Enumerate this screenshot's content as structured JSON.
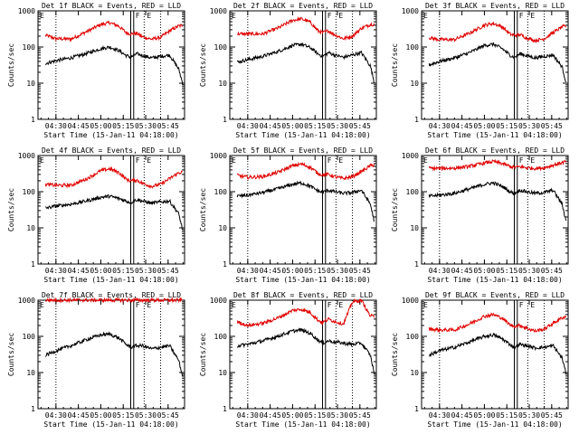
{
  "figure": {
    "colors": {
      "events": "#000000",
      "lld": "#e00000",
      "axes": "#000000",
      "background": "#ffffff"
    },
    "x_tick_labels": [
      "04:30",
      "04:45",
      "05:00",
      "05:15",
      "05:30",
      "05:45"
    ],
    "y_tick_labels": [
      "1",
      "10",
      "100",
      "1000"
    ],
    "ylabel": "Counts/sec",
    "xlabel": "Start Time (15-Jan-11 04:18:00)",
    "marker_F": "F",
    "marker_E": "E",
    "panel_titles": [
      "Det 1f BLACK = Events, RED = LLD",
      "Det 2f BLACK = Events, RED = LLD",
      "Det 3f BLACK = Events, RED = LLD",
      "Det 4f BLACK = Events, RED = LLD",
      "Det 5f BLACK = Events, RED = LLD",
      "Det 6f BLACK = Events, RED = LLD",
      "Det 7f BLACK = Events, RED = LLD",
      "Det 8f BLACK = Events, RED = LLD",
      "Det 9f BLACK = Events, RED = LLD"
    ]
  },
  "chart_data": [
    {
      "type": "line",
      "title": "Det 1f BLACK = Events, RED = LLD",
      "xlabel": "Start Time (15-Jan-11 04:18:00)",
      "ylabel": "Counts/sec",
      "yscale": "log",
      "ylim": [
        1,
        1000
      ],
      "xlim": [
        "04:18",
        "05:56"
      ],
      "vertical_lines": {
        "dotted": [
          "04:30",
          "05:29",
          "05:40"
        ],
        "solid": [
          "05:20",
          "05:22"
        ]
      },
      "x": [
        "04:23",
        "04:30",
        "04:40",
        "04:50",
        "05:00",
        "05:06",
        "05:12",
        "05:17",
        "05:20",
        "05:24",
        "05:28",
        "05:34",
        "05:40",
        "05:46",
        "05:52",
        "05:55"
      ],
      "series": [
        {
          "name": "LLD",
          "color": "#e00000",
          "values": [
            210,
            170,
            165,
            260,
            420,
            470,
            380,
            250,
            230,
            240,
            190,
            165,
            185,
            280,
            380,
            400
          ]
        },
        {
          "name": "Events",
          "color": "#000000",
          "values": [
            35,
            42,
            50,
            65,
            90,
            100,
            80,
            58,
            52,
            65,
            58,
            50,
            55,
            60,
            25,
            9
          ]
        }
      ]
    },
    {
      "type": "line",
      "title": "Det 2f BLACK = Events, RED = LLD",
      "xlabel": "Start Time (15-Jan-11 04:18:00)",
      "ylabel": "Counts/sec",
      "yscale": "log",
      "ylim": [
        1,
        1000
      ],
      "xlim": [
        "04:18",
        "05:56"
      ],
      "vertical_lines": {
        "dotted": [
          "04:30",
          "05:29",
          "05:40"
        ],
        "solid": [
          "05:20",
          "05:22"
        ]
      },
      "x": [
        "04:23",
        "04:30",
        "04:40",
        "04:50",
        "05:00",
        "05:06",
        "05:12",
        "05:17",
        "05:20",
        "05:24",
        "05:28",
        "05:34",
        "05:40",
        "05:46",
        "05:52",
        "05:55"
      ],
      "series": [
        {
          "name": "LLD",
          "color": "#e00000",
          "values": [
            230,
            230,
            230,
            330,
            550,
            600,
            480,
            280,
            250,
            280,
            220,
            170,
            200,
            330,
            420,
            430
          ]
        },
        {
          "name": "Events",
          "color": "#000000",
          "values": [
            38,
            45,
            55,
            75,
            110,
            120,
            95,
            65,
            55,
            70,
            60,
            52,
            60,
            70,
            30,
            9
          ]
        }
      ]
    },
    {
      "type": "line",
      "title": "Det 3f BLACK = Events, RED = LLD",
      "xlabel": "Start Time (15-Jan-11 04:18:00)",
      "ylabel": "Counts/sec",
      "yscale": "log",
      "ylim": [
        1,
        1000
      ],
      "xlim": [
        "04:18",
        "05:56"
      ],
      "vertical_lines": {
        "dotted": [
          "04:30",
          "05:29",
          "05:40"
        ],
        "solid": [
          "05:20",
          "05:22"
        ]
      },
      "x": [
        "04:23",
        "04:30",
        "04:40",
        "04:50",
        "05:00",
        "05:06",
        "05:12",
        "05:17",
        "05:20",
        "05:24",
        "05:28",
        "05:34",
        "05:40",
        "05:46",
        "05:52",
        "05:55"
      ],
      "series": [
        {
          "name": "LLD",
          "color": "#e00000",
          "values": [
            180,
            160,
            160,
            240,
            400,
            450,
            360,
            230,
            210,
            220,
            180,
            150,
            170,
            250,
            360,
            380
          ]
        },
        {
          "name": "Events",
          "color": "#000000",
          "values": [
            32,
            40,
            50,
            70,
            110,
            120,
            90,
            60,
            52,
            65,
            58,
            50,
            55,
            60,
            28,
            9
          ]
        }
      ]
    },
    {
      "type": "line",
      "title": "Det 4f BLACK = Events, RED = LLD",
      "xlabel": "Start Time (15-Jan-11 04:18:00)",
      "ylabel": "Counts/sec",
      "yscale": "log",
      "ylim": [
        1,
        1000
      ],
      "xlim": [
        "04:18",
        "05:56"
      ],
      "vertical_lines": {
        "dotted": [
          "04:30",
          "05:29",
          "05:40"
        ],
        "solid": [
          "05:20",
          "05:22"
        ]
      },
      "x": [
        "04:23",
        "04:30",
        "04:40",
        "04:50",
        "05:00",
        "05:06",
        "05:12",
        "05:17",
        "05:20",
        "05:24",
        "05:28",
        "05:34",
        "05:40",
        "05:46",
        "05:52",
        "05:55"
      ],
      "series": [
        {
          "name": "LLD",
          "color": "#e00000",
          "values": [
            160,
            150,
            150,
            220,
            380,
            430,
            340,
            220,
            200,
            210,
            170,
            140,
            160,
            230,
            330,
            350
          ]
        },
        {
          "name": "Events",
          "color": "#000000",
          "values": [
            35,
            40,
            45,
            55,
            70,
            75,
            65,
            55,
            50,
            60,
            55,
            48,
            52,
            55,
            25,
            8
          ]
        }
      ]
    },
    {
      "type": "line",
      "title": "Det 5f BLACK = Events, RED = LLD",
      "xlabel": "Start Time (15-Jan-11 04:18:00)",
      "ylabel": "Counts/sec",
      "yscale": "log",
      "ylim": [
        1,
        1000
      ],
      "xlim": [
        "04:18",
        "05:56"
      ],
      "vertical_lines": {
        "dotted": [
          "04:30",
          "05:29",
          "05:40"
        ],
        "solid": [
          "05:20",
          "05:22"
        ]
      },
      "x": [
        "04:23",
        "04:30",
        "04:40",
        "04:50",
        "05:00",
        "05:06",
        "05:12",
        "05:17",
        "05:20",
        "05:24",
        "05:28",
        "05:34",
        "05:40",
        "05:46",
        "05:52",
        "05:55"
      ],
      "series": [
        {
          "name": "LLD",
          "color": "#e00000",
          "values": [
            280,
            250,
            260,
            340,
            520,
            580,
            470,
            320,
            290,
            300,
            260,
            230,
            260,
            360,
            520,
            560
          ]
        },
        {
          "name": "Events",
          "color": "#000000",
          "values": [
            75,
            80,
            95,
            120,
            160,
            175,
            140,
            105,
            95,
            110,
            100,
            90,
            95,
            110,
            45,
            13
          ]
        }
      ]
    },
    {
      "type": "line",
      "title": "Det 6f BLACK = Events, RED = LLD",
      "xlabel": "Start Time (15-Jan-11 04:18:00)",
      "ylabel": "Counts/sec",
      "yscale": "log",
      "ylim": [
        1,
        1000
      ],
      "xlim": [
        "04:18",
        "05:56"
      ],
      "vertical_lines": {
        "dotted": [
          "04:30",
          "05:29",
          "05:40"
        ],
        "solid": [
          "05:20",
          "05:22"
        ]
      },
      "x": [
        "04:23",
        "04:30",
        "04:40",
        "04:50",
        "05:00",
        "05:06",
        "05:12",
        "05:17",
        "05:20",
        "05:24",
        "05:28",
        "05:34",
        "05:40",
        "05:46",
        "05:52",
        "05:55"
      ],
      "series": [
        {
          "name": "LLD",
          "color": "#e00000",
          "values": [
            450,
            440,
            450,
            500,
            620,
            680,
            600,
            500,
            470,
            490,
            460,
            440,
            460,
            540,
            640,
            680
          ]
        },
        {
          "name": "Events",
          "color": "#000000",
          "values": [
            75,
            80,
            90,
            120,
            160,
            175,
            140,
            100,
            90,
            110,
            100,
            90,
            95,
            110,
            45,
            13
          ]
        }
      ]
    },
    {
      "type": "line",
      "title": "Det 7f BLACK = Events, RED = LLD",
      "xlabel": "Start Time (15-Jan-11 04:18:00)",
      "ylabel": "Counts/sec",
      "yscale": "log",
      "ylim": [
        1,
        1000
      ],
      "xlim": [
        "04:18",
        "05:56"
      ],
      "vertical_lines": {
        "dotted": [
          "04:30",
          "05:29",
          "05:40"
        ],
        "solid": [
          "05:20",
          "05:22"
        ]
      },
      "x": [
        "04:23",
        "04:30",
        "04:40",
        "04:50",
        "05:00",
        "05:06",
        "05:12",
        "05:17",
        "05:20",
        "05:24",
        "05:28",
        "05:34",
        "05:40",
        "05:46",
        "05:52",
        "05:55"
      ],
      "series": [
        {
          "name": "LLD",
          "color": "#e00000",
          "values": [
            1000,
            1000,
            1000,
            1000,
            1000,
            1000,
            1000,
            1000,
            1000,
            1000,
            1000,
            1000,
            1000,
            1000,
            1000,
            1000
          ]
        },
        {
          "name": "Events",
          "color": "#000000",
          "values": [
            30,
            40,
            55,
            80,
            110,
            115,
            90,
            60,
            50,
            55,
            55,
            45,
            50,
            55,
            22,
            7
          ]
        }
      ]
    },
    {
      "type": "line",
      "title": "Det 8f BLACK = Events, RED = LLD",
      "xlabel": "Start Time (15-Jan-11 04:18:00)",
      "ylabel": "Counts/sec",
      "yscale": "log",
      "ylim": [
        1,
        1000
      ],
      "xlim": [
        "04:18",
        "05:56"
      ],
      "vertical_lines": {
        "dotted": [
          "04:30",
          "05:29",
          "05:40"
        ],
        "solid": [
          "05:20",
          "05:22"
        ]
      },
      "x": [
        "04:23",
        "04:30",
        "04:40",
        "04:50",
        "05:00",
        "05:06",
        "05:12",
        "05:17",
        "05:20",
        "05:24",
        "05:28",
        "05:34",
        "05:40",
        "05:46",
        "05:52",
        "05:55"
      ],
      "series": [
        {
          "name": "LLD",
          "color": "#e00000",
          "values": [
            250,
            200,
            230,
            320,
            520,
            560,
            450,
            280,
            240,
            300,
            260,
            220,
            900,
            1000,
            360,
            360
          ]
        },
        {
          "name": "Events",
          "color": "#000000",
          "values": [
            55,
            60,
            75,
            100,
            140,
            150,
            120,
            80,
            65,
            75,
            70,
            65,
            60,
            65,
            30,
            8
          ]
        }
      ]
    },
    {
      "type": "line",
      "title": "Det 9f BLACK = Events, RED = LLD",
      "xlabel": "Start Time (15-Jan-11 04:18:00)",
      "ylabel": "Counts/sec",
      "yscale": "log",
      "ylim": [
        1,
        1000
      ],
      "xlim": [
        "04:18",
        "05:56"
      ],
      "vertical_lines": {
        "dotted": [
          "04:30",
          "05:29",
          "05:40"
        ],
        "solid": [
          "05:20",
          "05:22"
        ]
      },
      "x": [
        "04:23",
        "04:30",
        "04:40",
        "04:50",
        "05:00",
        "05:06",
        "05:12",
        "05:17",
        "05:20",
        "05:24",
        "05:28",
        "05:34",
        "05:40",
        "05:46",
        "05:52",
        "05:55"
      ],
      "series": [
        {
          "name": "LLD",
          "color": "#e00000",
          "values": [
            160,
            150,
            150,
            220,
            360,
            400,
            320,
            210,
            190,
            200,
            170,
            140,
            160,
            230,
            330,
            350
          ]
        },
        {
          "name": "Events",
          "color": "#000000",
          "values": [
            30,
            40,
            50,
            70,
            100,
            110,
            85,
            60,
            50,
            60,
            55,
            48,
            50,
            55,
            25,
            8
          ]
        }
      ]
    }
  ]
}
